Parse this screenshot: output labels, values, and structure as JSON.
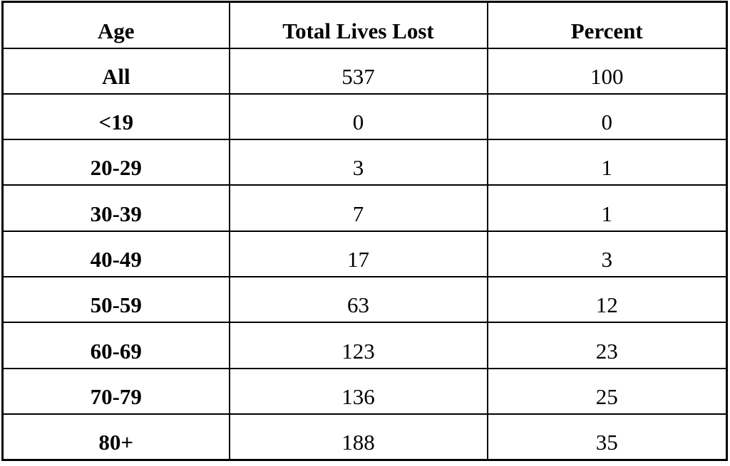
{
  "chart_data": {
    "type": "table",
    "columns": [
      "Age",
      "Total Lives Lost",
      "Percent"
    ],
    "rows": [
      [
        "All",
        "537",
        "100"
      ],
      [
        "<19",
        "0",
        "0"
      ],
      [
        "20-29",
        "3",
        "1"
      ],
      [
        "30-39",
        "7",
        "1"
      ],
      [
        "40-49",
        "17",
        "3"
      ],
      [
        "50-59",
        "63",
        "12"
      ],
      [
        "60-69",
        "123",
        "23"
      ],
      [
        "70-79",
        "136",
        "25"
      ],
      [
        "80+",
        "188",
        "35"
      ]
    ],
    "layout": {
      "legend": "none",
      "grid": "full-borders"
    }
  },
  "colors": {
    "border": "#000000",
    "text": "#000000",
    "background": "#ffffff"
  }
}
